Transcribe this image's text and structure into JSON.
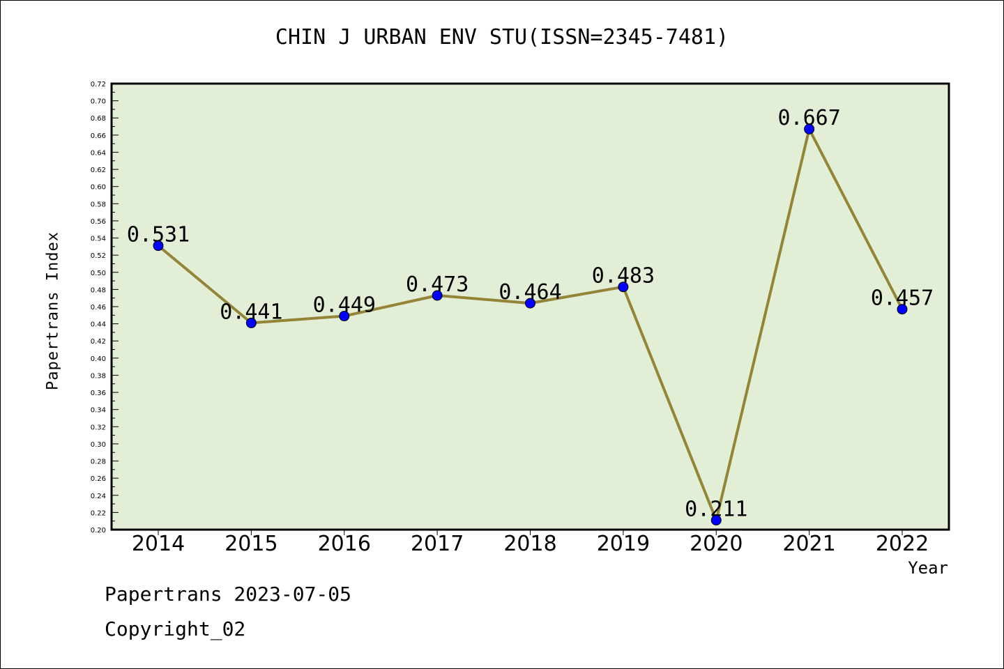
{
  "chart_data": {
    "type": "line",
    "title": "CHIN J URBAN ENV STU(ISSN=2345-7481)",
    "xlabel": "Year",
    "ylabel": "Papertrans Index",
    "categories": [
      "2014",
      "2015",
      "2016",
      "2017",
      "2018",
      "2019",
      "2020",
      "2021",
      "2022"
    ],
    "series": [
      {
        "values": [
          0.531,
          0.441,
          0.449,
          0.473,
          0.464,
          0.483,
          0.211,
          0.667,
          0.457
        ],
        "labels": [
          "0.531",
          "0.441",
          "0.449",
          "0.473",
          "0.464",
          "0.483",
          "0.211",
          "0.667",
          "0.457"
        ]
      }
    ],
    "ylim": [
      0.2,
      0.72
    ],
    "yticks": [
      "0.20",
      "0.22",
      "0.24",
      "0.26",
      "0.28",
      "0.30",
      "0.32",
      "0.34",
      "0.36",
      "0.38",
      "0.40",
      "0.42",
      "0.44",
      "0.46",
      "0.48",
      "0.50",
      "0.52",
      "0.54",
      "0.56",
      "0.58",
      "0.60",
      "0.62",
      "0.64",
      "0.66",
      "0.68",
      "0.70",
      "0.72"
    ],
    "grid": false,
    "colors": {
      "plot_background": "#e2efd6",
      "line": "#948437",
      "marker": "#0000ff"
    }
  },
  "footer": {
    "line1": "Papertrans 2023-07-05",
    "line2": "Copyright_02"
  }
}
